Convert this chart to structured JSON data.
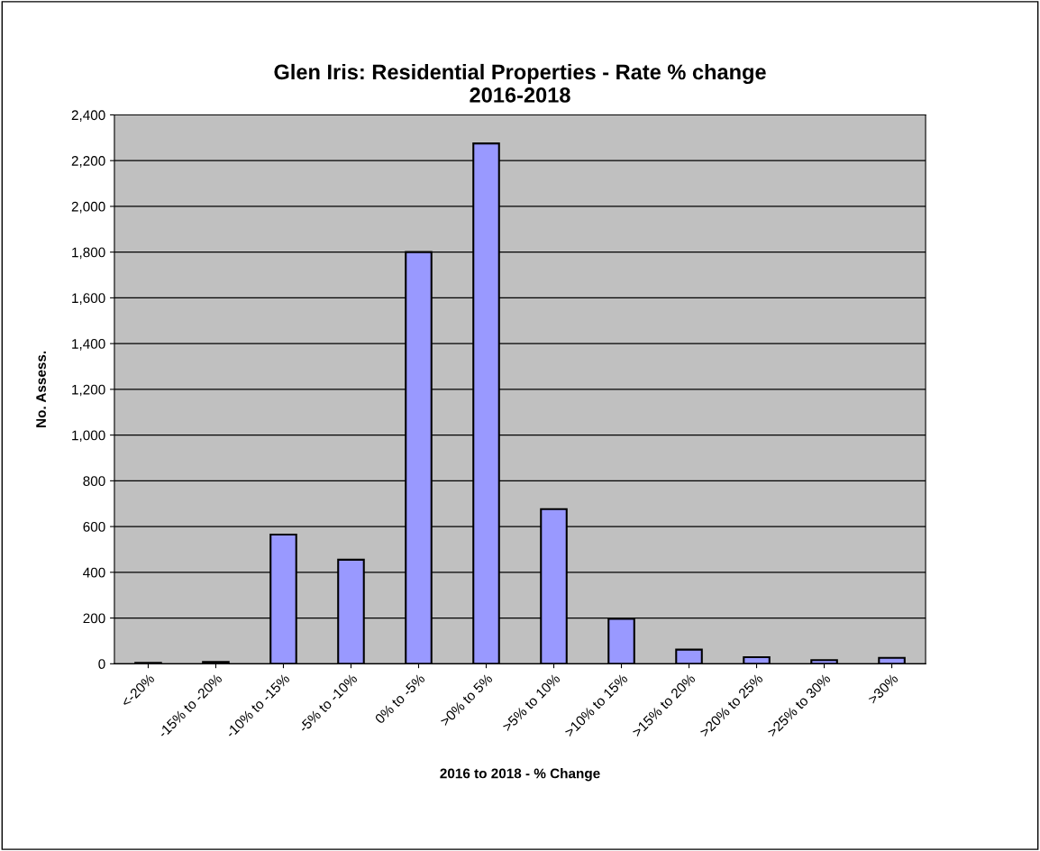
{
  "chart_data": {
    "type": "bar",
    "title": "Glen Iris: Residential Properties - Rate % change\n2016-2018",
    "xlabel": "2016 to 2018 - % Change",
    "ylabel": "No. Assess.",
    "categories": [
      "<-20%",
      "-15% to -20%",
      "-10% to -15%",
      "-5% to -10%",
      "0% to -5%",
      ">0% to 5%",
      ">5% to 10%",
      ">10% to 15%",
      ">15% to 20%",
      ">20% to 25%",
      ">25% to 30%",
      ">30%"
    ],
    "values": [
      4,
      8,
      565,
      455,
      1800,
      2275,
      676,
      197,
      62,
      29,
      16,
      26
    ],
    "color": "#9999ff",
    "ylim": [
      0,
      2400
    ],
    "yticks": [
      0,
      200,
      400,
      600,
      800,
      {
        "value": 1000,
        "label": "1,000"
      },
      {
        "value": 1200,
        "label": "1,200"
      },
      {
        "value": 1400,
        "label": "1,400"
      },
      {
        "value": 1600,
        "label": "1,600"
      },
      {
        "value": 1800,
        "label": "1,800"
      },
      {
        "value": 2000,
        "label": "2,000"
      },
      {
        "value": 2200,
        "label": "2,200"
      },
      {
        "value": 2400,
        "label": "2,400"
      }
    ],
    "grid": "y"
  }
}
